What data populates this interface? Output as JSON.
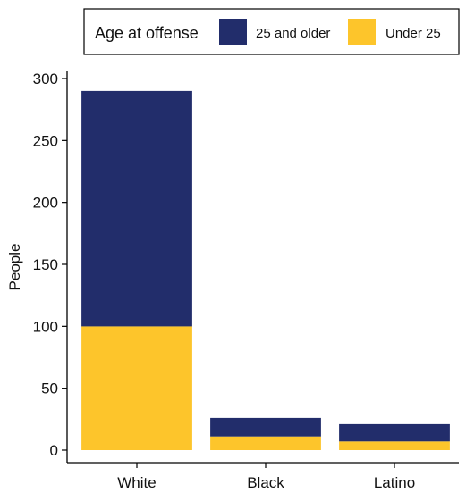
{
  "chart_data": {
    "type": "bar",
    "stacked": true,
    "categories": [
      "White",
      "Black",
      "Latino"
    ],
    "series": [
      {
        "name": "25 and older",
        "values": [
          190,
          15,
          14
        ],
        "color": "#222d6b"
      },
      {
        "name": "Under 25",
        "values": [
          100,
          11,
          7
        ],
        "color": "#fdc52b"
      }
    ],
    "xlabel": "",
    "ylabel": "People",
    "ylim": [
      0,
      300
    ],
    "yticks": [
      0,
      50,
      100,
      150,
      200,
      250,
      300
    ],
    "grid": false,
    "legend": {
      "title": "Age at offense",
      "placement": "top"
    }
  }
}
